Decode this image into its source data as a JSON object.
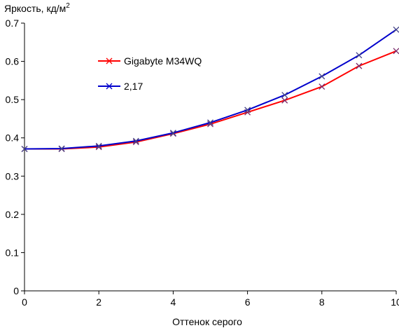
{
  "chart_data": {
    "type": "line",
    "title": "",
    "xlabel": "Оттенок серого",
    "ylabel": "Яркость, кд/м",
    "ylabel_superscript": "2",
    "xlim": [
      0,
      10
    ],
    "ylim": [
      0,
      0.7
    ],
    "x_ticks": [
      "0",
      "2",
      "4",
      "6",
      "8",
      "10"
    ],
    "y_ticks": [
      "0",
      "0.1",
      "0.2",
      "0.3",
      "0.4",
      "0.5",
      "0.6",
      "0.7"
    ],
    "grid": false,
    "legend_position": "upper-left",
    "x": [
      0,
      1,
      2,
      3,
      4,
      5,
      6,
      7,
      8,
      9,
      10
    ],
    "series": [
      {
        "name": "Gigabyte M34WQ",
        "color": "#ff0000",
        "marker": "x",
        "values": [
          0.371,
          0.371,
          0.376,
          0.389,
          0.411,
          0.436,
          0.467,
          0.498,
          0.534,
          0.588,
          0.627
        ]
      },
      {
        "name": "2,17",
        "color": "#0000cc",
        "marker": "x",
        "values": [
          0.371,
          0.372,
          0.379,
          0.392,
          0.413,
          0.44,
          0.473,
          0.512,
          0.561,
          0.616,
          0.683
        ]
      }
    ]
  }
}
